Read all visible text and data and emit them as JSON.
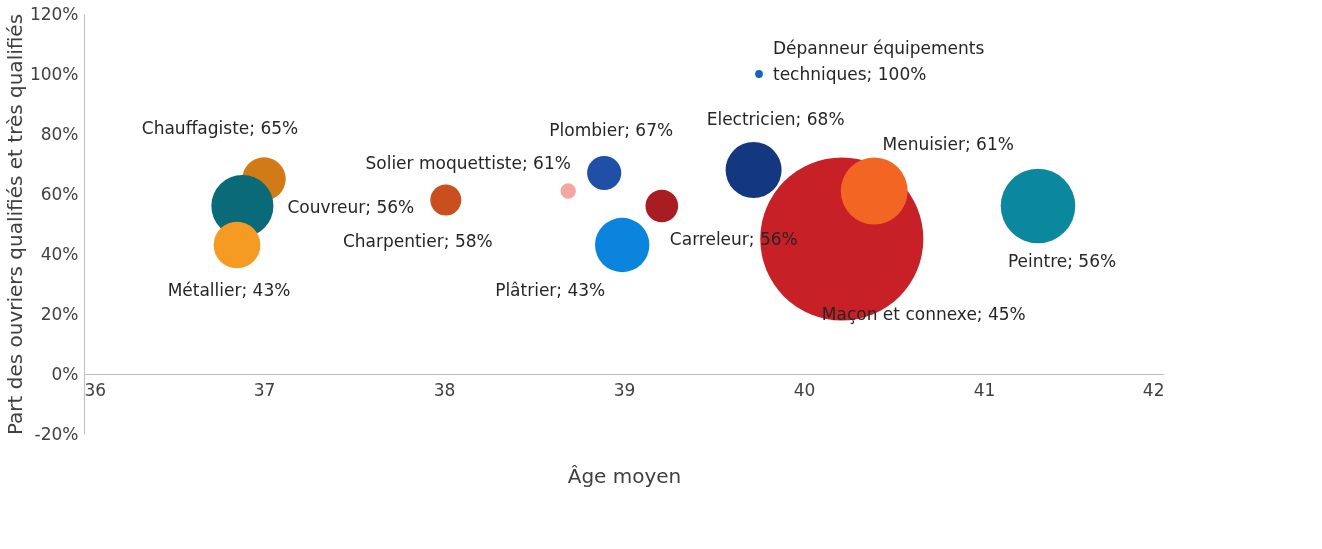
{
  "chart_data": {
    "type": "bubble",
    "xlabel": "Âge moyen",
    "ylabel": "Part des ouvriers qualifiés et très qualifiés",
    "x": [
      37.0,
      36.88,
      36.85,
      38.01,
      38.69,
      38.89,
      38.99,
      39.21,
      39.72,
      39.75,
      40.21,
      40.39,
      41.3
    ],
    "values": [
      65,
      56,
      43,
      58,
      61,
      67,
      43,
      56,
      68,
      100,
      45,
      61,
      56
    ],
    "sizes": [
      0.071,
      0.145,
      0.082,
      0.036,
      0.009,
      0.044,
      0.111,
      0.04,
      0.118,
      0.0023,
      1,
      0.168,
      0.209
    ],
    "colors": [
      "#d17a16",
      "#0a6a78",
      "#f59a23",
      "#c9501e",
      "#f4a6a0",
      "#1f4fa6",
      "#0a84dc",
      "#a81c22",
      "#14387f",
      "#1565b8",
      "#c82027",
      "#f26522",
      "#0b889e"
    ],
    "value_labels": [
      "Chauffagiste; 65%",
      "Couvreur; 56%",
      "Métallier; 43%",
      "Charpentier; 58%",
      "Solier moquettiste; 61%",
      "Plombier; 67%",
      "Plâtrier; 43%",
      "Carreleur; 56%",
      "Electricien; 68%",
      "Dépanneur équipements\ntechniques; 100%",
      "Maçon et connexe; 45%",
      "Menuisier; 61%",
      "Peintre; 56%"
    ],
    "xlim": [
      36,
      42
    ],
    "xticks": [
      36,
      37,
      38,
      39,
      40,
      41,
      42
    ],
    "ylim": [
      -20,
      120
    ],
    "yticks": [
      {
        "value": -20,
        "label": "-20%"
      },
      {
        "value": 0,
        "label": "0%"
      },
      {
        "value": 20,
        "label": "20%"
      },
      {
        "value": 40,
        "label": "40%"
      },
      {
        "value": 60,
        "label": "60%"
      },
      {
        "value": 80,
        "label": "80%"
      },
      {
        "value": 100,
        "label": "100%"
      },
      {
        "value": 120,
        "label": "120%"
      }
    ]
  }
}
